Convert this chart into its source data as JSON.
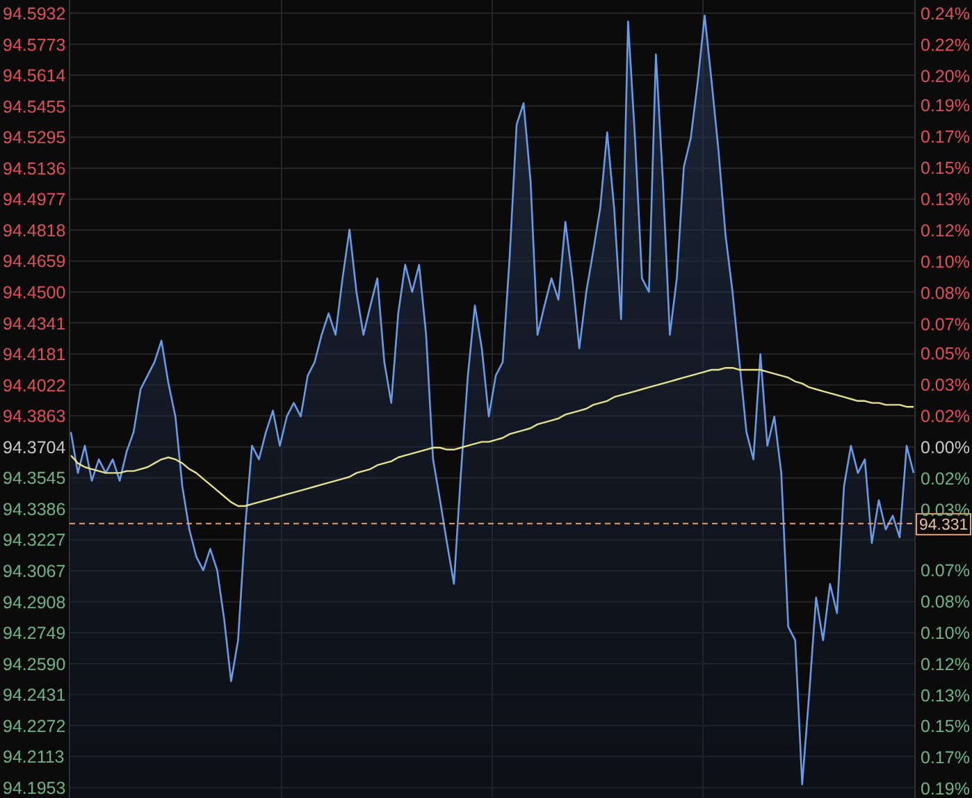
{
  "chart_data": {
    "type": "area",
    "categories": [
      null,
      null,
      null,
      null,
      null,
      null,
      null,
      null,
      null,
      null,
      null,
      null,
      null,
      null,
      null,
      null,
      null,
      null,
      null,
      null,
      null,
      null,
      null,
      null,
      null,
      null,
      null,
      null,
      null,
      null,
      null,
      null,
      null,
      null,
      null,
      null,
      null,
      null,
      null,
      null,
      null,
      null,
      null,
      null,
      null,
      null,
      null,
      null,
      null,
      null,
      null,
      null,
      null,
      null,
      null,
      null,
      null,
      null,
      null,
      null,
      null,
      null,
      null,
      null,
      null,
      null,
      null,
      null,
      null,
      null,
      null,
      null,
      null,
      null,
      null,
      null,
      null,
      null,
      null,
      null,
      null,
      null,
      null,
      null,
      null,
      null,
      null,
      null,
      null,
      null,
      null,
      null,
      null,
      null,
      null,
      null,
      null,
      null,
      null,
      null,
      null,
      null,
      null,
      null,
      null,
      null,
      null,
      null,
      null,
      null,
      null,
      null,
      null,
      null,
      null,
      null,
      null,
      null,
      null,
      null,
      null,
      null
    ],
    "series": [
      {
        "color": "#6b9be6",
        "values": [
          94.378,
          94.357,
          94.371,
          94.353,
          94.364,
          94.357,
          94.364,
          94.353,
          94.368,
          94.378,
          94.4,
          94.407,
          94.414,
          94.425,
          94.403,
          94.386,
          94.35,
          94.328,
          94.314,
          94.307,
          94.318,
          94.307,
          94.282,
          94.25,
          94.271,
          94.328,
          94.371,
          94.364,
          94.378,
          94.389,
          94.371,
          94.386,
          94.393,
          94.386,
          94.407,
          94.414,
          94.428,
          94.439,
          94.428,
          94.457,
          94.482,
          94.45,
          94.428,
          94.443,
          94.457,
          94.414,
          94.393,
          94.439,
          94.464,
          94.45,
          94.464,
          94.428,
          94.364,
          94.343,
          94.321,
          94.3,
          94.357,
          94.407,
          94.443,
          94.421,
          94.386,
          94.407,
          94.414,
          94.468,
          94.536,
          94.547,
          94.507,
          94.428,
          94.443,
          94.457,
          94.446,
          94.486,
          94.457,
          94.421,
          94.45,
          94.471,
          94.493,
          94.532,
          94.493,
          94.436,
          94.589,
          94.529,
          94.457,
          94.45,
          94.572,
          94.507,
          94.428,
          94.457,
          94.514,
          94.529,
          94.558,
          94.592,
          94.558,
          94.522,
          94.479,
          94.45,
          94.414,
          94.378,
          94.364,
          94.418,
          94.371,
          94.386,
          94.357,
          94.278,
          94.271,
          94.197,
          94.243,
          94.293,
          94.271,
          94.3,
          94.285,
          94.35,
          94.371,
          94.357,
          94.364,
          94.321,
          94.343,
          94.328,
          94.335,
          94.324,
          94.371,
          94.357
        ]
      },
      {
        "type": "line",
        "color": "#e6e28c",
        "values": [
          94.366,
          94.362,
          94.36,
          94.359,
          94.358,
          94.357,
          94.357,
          94.357,
          94.358,
          94.358,
          94.359,
          94.36,
          94.362,
          94.364,
          94.365,
          94.364,
          94.362,
          94.359,
          94.357,
          94.354,
          94.351,
          94.348,
          94.345,
          94.342,
          94.34,
          94.34,
          94.341,
          94.342,
          94.343,
          94.344,
          94.345,
          94.346,
          94.347,
          94.348,
          94.349,
          94.35,
          94.351,
          94.352,
          94.353,
          94.354,
          94.355,
          94.357,
          94.358,
          94.359,
          94.361,
          94.362,
          94.363,
          94.365,
          94.366,
          94.367,
          94.368,
          94.369,
          94.37,
          94.37,
          94.369,
          94.369,
          94.37,
          94.371,
          94.372,
          94.373,
          94.373,
          94.374,
          94.375,
          94.377,
          94.378,
          94.379,
          94.38,
          94.382,
          94.383,
          94.384,
          94.385,
          94.387,
          94.388,
          94.389,
          94.39,
          94.392,
          94.393,
          94.394,
          94.396,
          94.397,
          94.398,
          94.399,
          94.4,
          94.401,
          94.402,
          94.403,
          94.404,
          94.405,
          94.406,
          94.407,
          94.408,
          94.409,
          94.41,
          94.41,
          94.411,
          94.411,
          94.41,
          94.41,
          94.41,
          94.41,
          94.409,
          94.408,
          94.407,
          94.406,
          94.404,
          94.403,
          94.401,
          94.4,
          94.399,
          94.398,
          94.397,
          94.396,
          94.395,
          94.394,
          94.394,
          94.393,
          94.393,
          94.392,
          94.392,
          94.392,
          94.391,
          94.391
        ]
      }
    ],
    "ylim": [
      94.19,
      94.6
    ],
    "yticks": [
      {
        "value": 94.5932,
        "label": "94.5932"
      },
      {
        "value": 94.5773,
        "label": "94.5773"
      },
      {
        "value": 94.5614,
        "label": "94.5614"
      },
      {
        "value": 94.5455,
        "label": "94.5455"
      },
      {
        "value": 94.5295,
        "label": "94.5295"
      },
      {
        "value": 94.5136,
        "label": "94.5136"
      },
      {
        "value": 94.4977,
        "label": "94.4977"
      },
      {
        "value": 94.4818,
        "label": "94.4818"
      },
      {
        "value": 94.4659,
        "label": "94.4659"
      },
      {
        "value": 94.45,
        "label": "94.4500"
      },
      {
        "value": 94.4341,
        "label": "94.4341"
      },
      {
        "value": 94.4181,
        "label": "94.4181"
      },
      {
        "value": 94.4022,
        "label": "94.4022"
      },
      {
        "value": 94.3863,
        "label": "94.3863"
      },
      {
        "value": 94.3704,
        "label": "94.3704"
      },
      {
        "value": 94.3545,
        "label": "94.3545"
      },
      {
        "value": 94.3386,
        "label": "94.3386"
      },
      {
        "value": 94.3227,
        "label": "94.3227"
      },
      {
        "value": 94.3067,
        "label": "94.3067"
      },
      {
        "value": 94.2908,
        "label": "94.2908"
      },
      {
        "value": 94.2749,
        "label": "94.2749"
      },
      {
        "value": 94.259,
        "label": "94.2590"
      },
      {
        "value": 94.2431,
        "label": "94.2431"
      },
      {
        "value": 94.2272,
        "label": "94.2272"
      },
      {
        "value": 94.2113,
        "label": "94.2113"
      },
      {
        "value": 94.1953,
        "label": "94.1953"
      }
    ],
    "y2lim": [
      -0.1912,
      0.2433
    ],
    "y2ticks": [
      {
        "value": 0.236,
        "label": "0.24%"
      },
      {
        "value": 0.219,
        "label": "0.22%"
      },
      {
        "value": 0.202,
        "label": "0.20%"
      },
      {
        "value": 0.186,
        "label": "0.19%"
      },
      {
        "value": 0.169,
        "label": "0.17%"
      },
      {
        "value": 0.152,
        "label": "0.15%"
      },
      {
        "value": 0.135,
        "label": "0.13%"
      },
      {
        "value": 0.118,
        "label": "0.12%"
      },
      {
        "value": 0.101,
        "label": "0.10%"
      },
      {
        "value": 0.084,
        "label": "0.08%"
      },
      {
        "value": 0.067,
        "label": "0.07%"
      },
      {
        "value": 0.051,
        "label": "0.05%"
      },
      {
        "value": 0.034,
        "label": "0.03%"
      },
      {
        "value": 0.017,
        "label": "0.02%"
      },
      {
        "value": 0,
        "label": "0.00%"
      },
      {
        "value": -0.017,
        "label": "0.02%"
      },
      {
        "value": -0.034,
        "label": "0.03%"
      },
      {
        "value": -0.051,
        "label": null
      },
      {
        "value": -0.067,
        "label": "0.07%"
      },
      {
        "value": -0.084,
        "label": "0.08%"
      },
      {
        "value": -0.101,
        "label": "0.10%"
      },
      {
        "value": -0.118,
        "label": "0.12%"
      },
      {
        "value": -0.135,
        "label": "0.13%"
      },
      {
        "value": -0.152,
        "label": "0.15%"
      },
      {
        "value": -0.169,
        "label": "0.17%"
      },
      {
        "value": -0.186,
        "label": "0.19%"
      }
    ],
    "ref_lines": [
      {
        "axis": "y",
        "value": 94.331,
        "label": "94.331",
        "color": "#e8a070",
        "line_style": "dashed"
      }
    ],
    "grid": true
  }
}
